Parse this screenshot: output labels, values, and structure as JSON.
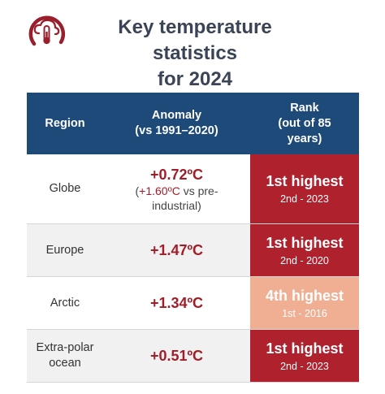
{
  "logo_icon": "cloud-thermometer-icon",
  "title": {
    "line1": "Key temperature statistics",
    "line2": "for 2024"
  },
  "columns": {
    "region": "Region",
    "anomaly_line1": "Anomaly",
    "anomaly_line2": "(vs 1991–2020)",
    "rank_line1": "Rank",
    "rank_line2": "(out of 85",
    "rank_line3": "years)"
  },
  "rows": [
    {
      "region_line1": "Globe",
      "region_line2": "",
      "anomaly": "+0.72ºC",
      "note_open": "(",
      "note_value": "+1.60ºC",
      "note_rest1": " vs pre-",
      "note_rest2": "industrial)",
      "rank": "1st highest",
      "rank_second": "2nd - 2023",
      "rank_color": "#b0212e",
      "bg": "#ffffff"
    },
    {
      "region_line1": "Europe",
      "region_line2": "",
      "anomaly": "+1.47ºC",
      "rank": "1st highest",
      "rank_second": "2nd - 2020",
      "rank_color": "#b0212e",
      "bg": "#f1f1f1"
    },
    {
      "region_line1": "Arctic",
      "region_line2": "",
      "anomaly": "+1.34ºC",
      "rank": "4th highest",
      "rank_second": "1st - 2016",
      "rank_color": "#f0ae92",
      "bg": "#ffffff"
    },
    {
      "region_line1": "Extra-polar",
      "region_line2": "ocean",
      "anomaly": "+0.51ºC",
      "rank": "1st highest",
      "rank_second": "2nd - 2023",
      "rank_color": "#b0212e",
      "bg": "#f1f1f1"
    }
  ],
  "colors": {
    "header_bg": "#1e4a7a",
    "accent_red": "#a01e2a",
    "rank_high": "#b0212e",
    "rank_mid": "#f0ae92",
    "title_text": "#3a4456"
  }
}
